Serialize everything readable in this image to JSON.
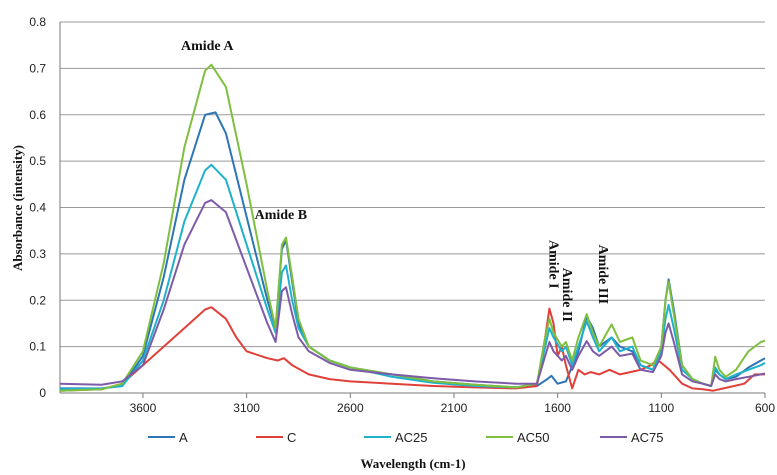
{
  "chart_data": {
    "type": "line",
    "title": "",
    "xlabel": "Wavelength (cm-1)",
    "ylabel": "Absorbance (intensity)",
    "xlim": [
      4000,
      600
    ],
    "x_reversed": true,
    "ylim": [
      0,
      0.8
    ],
    "grid": true,
    "legend_position": "bottom",
    "x_ticks": [
      3600,
      3100,
      2600,
      2100,
      1600,
      1100,
      600
    ],
    "y_ticks": [
      "0",
      "0.1",
      "0.2",
      "0.3",
      "0.4",
      "0.5",
      "0.6",
      "0.7",
      "0.8"
    ],
    "annotations": [
      {
        "text": "Amide A",
        "x": 3290,
        "y": 0.74,
        "rotate": false
      },
      {
        "text": "Amide B",
        "x": 2935,
        "y": 0.375,
        "rotate": false
      },
      {
        "text": "Amide I",
        "x": 1640,
        "y": 0.33,
        "rotate": true
      },
      {
        "text": "Amide II",
        "x": 1575,
        "y": 0.27,
        "rotate": true
      },
      {
        "text": "Amide III",
        "x": 1400,
        "y": 0.32,
        "rotate": true
      }
    ],
    "series": [
      {
        "name": "A",
        "color": "#2E75B6",
        "points": [
          [
            4000,
            0.01
          ],
          [
            3800,
            0.01
          ],
          [
            3700,
            0.015
          ],
          [
            3600,
            0.08
          ],
          [
            3500,
            0.25
          ],
          [
            3400,
            0.46
          ],
          [
            3300,
            0.6
          ],
          [
            3250,
            0.605
          ],
          [
            3200,
            0.56
          ],
          [
            3100,
            0.38
          ],
          [
            3000,
            0.2
          ],
          [
            2960,
            0.14
          ],
          [
            2930,
            0.31
          ],
          [
            2910,
            0.33
          ],
          [
            2880,
            0.24
          ],
          [
            2850,
            0.15
          ],
          [
            2800,
            0.1
          ],
          [
            2700,
            0.07
          ],
          [
            2600,
            0.055
          ],
          [
            2400,
            0.04
          ],
          [
            2200,
            0.025
          ],
          [
            2000,
            0.018
          ],
          [
            1800,
            0.012
          ],
          [
            1700,
            0.015
          ],
          [
            1650,
            0.03
          ],
          [
            1630,
            0.037
          ],
          [
            1600,
            0.02
          ],
          [
            1560,
            0.025
          ],
          [
            1500,
            0.09
          ],
          [
            1460,
            0.165
          ],
          [
            1430,
            0.14
          ],
          [
            1400,
            0.1
          ],
          [
            1340,
            0.12
          ],
          [
            1300,
            0.1
          ],
          [
            1240,
            0.09
          ],
          [
            1200,
            0.06
          ],
          [
            1140,
            0.05
          ],
          [
            1100,
            0.1
          ],
          [
            1080,
            0.2
          ],
          [
            1065,
            0.245
          ],
          [
            1040,
            0.18
          ],
          [
            1000,
            0.06
          ],
          [
            950,
            0.03
          ],
          [
            900,
            0.02
          ],
          [
            860,
            0.015
          ],
          [
            840,
            0.05
          ],
          [
            820,
            0.04
          ],
          [
            790,
            0.03
          ],
          [
            740,
            0.035
          ],
          [
            680,
            0.055
          ],
          [
            620,
            0.07
          ],
          [
            600,
            0.075
          ]
        ]
      },
      {
        "name": "C",
        "color": "#E0403A",
        "points": [
          [
            4000,
            0.005
          ],
          [
            3800,
            0.008
          ],
          [
            3700,
            0.02
          ],
          [
            3600,
            0.06
          ],
          [
            3500,
            0.1
          ],
          [
            3400,
            0.14
          ],
          [
            3300,
            0.18
          ],
          [
            3270,
            0.185
          ],
          [
            3200,
            0.16
          ],
          [
            3150,
            0.12
          ],
          [
            3100,
            0.09
          ],
          [
            3000,
            0.075
          ],
          [
            2950,
            0.07
          ],
          [
            2920,
            0.075
          ],
          [
            2880,
            0.06
          ],
          [
            2800,
            0.04
          ],
          [
            2700,
            0.03
          ],
          [
            2600,
            0.025
          ],
          [
            2400,
            0.02
          ],
          [
            2200,
            0.015
          ],
          [
            2000,
            0.012
          ],
          [
            1800,
            0.01
          ],
          [
            1700,
            0.015
          ],
          [
            1660,
            0.12
          ],
          [
            1640,
            0.182
          ],
          [
            1620,
            0.15
          ],
          [
            1600,
            0.08
          ],
          [
            1580,
            0.1
          ],
          [
            1560,
            0.06
          ],
          [
            1530,
            0.01
          ],
          [
            1500,
            0.05
          ],
          [
            1470,
            0.04
          ],
          [
            1440,
            0.045
          ],
          [
            1400,
            0.04
          ],
          [
            1350,
            0.05
          ],
          [
            1300,
            0.04
          ],
          [
            1250,
            0.045
          ],
          [
            1200,
            0.05
          ],
          [
            1150,
            0.06
          ],
          [
            1120,
            0.072
          ],
          [
            1100,
            0.065
          ],
          [
            1060,
            0.05
          ],
          [
            1000,
            0.02
          ],
          [
            950,
            0.01
          ],
          [
            900,
            0.008
          ],
          [
            850,
            0.005
          ],
          [
            800,
            0.01
          ],
          [
            700,
            0.02
          ],
          [
            650,
            0.04
          ],
          [
            600,
            0.04
          ]
        ]
      },
      {
        "name": "AC25",
        "color": "#1FB1CC",
        "points": [
          [
            4000,
            0.008
          ],
          [
            3800,
            0.01
          ],
          [
            3700,
            0.015
          ],
          [
            3600,
            0.07
          ],
          [
            3500,
            0.2
          ],
          [
            3400,
            0.37
          ],
          [
            3300,
            0.48
          ],
          [
            3270,
            0.492
          ],
          [
            3200,
            0.46
          ],
          [
            3100,
            0.32
          ],
          [
            3000,
            0.18
          ],
          [
            2960,
            0.13
          ],
          [
            2930,
            0.26
          ],
          [
            2910,
            0.275
          ],
          [
            2880,
            0.2
          ],
          [
            2850,
            0.14
          ],
          [
            2800,
            0.1
          ],
          [
            2700,
            0.07
          ],
          [
            2600,
            0.055
          ],
          [
            2400,
            0.035
          ],
          [
            2200,
            0.022
          ],
          [
            2000,
            0.015
          ],
          [
            1800,
            0.012
          ],
          [
            1700,
            0.02
          ],
          [
            1660,
            0.1
          ],
          [
            1640,
            0.14
          ],
          [
            1620,
            0.12
          ],
          [
            1580,
            0.09
          ],
          [
            1560,
            0.1
          ],
          [
            1530,
            0.06
          ],
          [
            1500,
            0.1
          ],
          [
            1460,
            0.155
          ],
          [
            1430,
            0.12
          ],
          [
            1400,
            0.09
          ],
          [
            1340,
            0.12
          ],
          [
            1300,
            0.09
          ],
          [
            1240,
            0.1
          ],
          [
            1200,
            0.06
          ],
          [
            1140,
            0.05
          ],
          [
            1100,
            0.09
          ],
          [
            1080,
            0.16
          ],
          [
            1065,
            0.19
          ],
          [
            1040,
            0.14
          ],
          [
            1000,
            0.05
          ],
          [
            950,
            0.03
          ],
          [
            900,
            0.02
          ],
          [
            860,
            0.015
          ],
          [
            840,
            0.055
          ],
          [
            820,
            0.04
          ],
          [
            790,
            0.03
          ],
          [
            740,
            0.04
          ],
          [
            680,
            0.05
          ],
          [
            620,
            0.06
          ],
          [
            600,
            0.065
          ]
        ]
      },
      {
        "name": "AC50",
        "color": "#7FBF3F",
        "points": [
          [
            4000,
            0.005
          ],
          [
            3800,
            0.008
          ],
          [
            3700,
            0.02
          ],
          [
            3600,
            0.09
          ],
          [
            3500,
            0.28
          ],
          [
            3400,
            0.53
          ],
          [
            3300,
            0.695
          ],
          [
            3270,
            0.708
          ],
          [
            3200,
            0.66
          ],
          [
            3100,
            0.45
          ],
          [
            3000,
            0.22
          ],
          [
            2960,
            0.14
          ],
          [
            2930,
            0.32
          ],
          [
            2910,
            0.335
          ],
          [
            2880,
            0.25
          ],
          [
            2850,
            0.16
          ],
          [
            2800,
            0.1
          ],
          [
            2700,
            0.07
          ],
          [
            2600,
            0.055
          ],
          [
            2400,
            0.04
          ],
          [
            2200,
            0.025
          ],
          [
            2000,
            0.018
          ],
          [
            1800,
            0.012
          ],
          [
            1700,
            0.02
          ],
          [
            1660,
            0.12
          ],
          [
            1640,
            0.16
          ],
          [
            1620,
            0.13
          ],
          [
            1580,
            0.1
          ],
          [
            1560,
            0.11
          ],
          [
            1530,
            0.07
          ],
          [
            1500,
            0.12
          ],
          [
            1460,
            0.17
          ],
          [
            1430,
            0.13
          ],
          [
            1400,
            0.1
          ],
          [
            1340,
            0.148
          ],
          [
            1300,
            0.11
          ],
          [
            1240,
            0.12
          ],
          [
            1200,
            0.07
          ],
          [
            1140,
            0.06
          ],
          [
            1100,
            0.1
          ],
          [
            1080,
            0.2
          ],
          [
            1065,
            0.24
          ],
          [
            1040,
            0.17
          ],
          [
            1000,
            0.06
          ],
          [
            950,
            0.03
          ],
          [
            900,
            0.02
          ],
          [
            860,
            0.015
          ],
          [
            840,
            0.078
          ],
          [
            820,
            0.05
          ],
          [
            790,
            0.035
          ],
          [
            740,
            0.05
          ],
          [
            680,
            0.09
          ],
          [
            620,
            0.11
          ],
          [
            600,
            0.113
          ]
        ]
      },
      {
        "name": "AC75",
        "color": "#7E5BA8",
        "points": [
          [
            4000,
            0.02
          ],
          [
            3800,
            0.018
          ],
          [
            3700,
            0.025
          ],
          [
            3600,
            0.06
          ],
          [
            3500,
            0.18
          ],
          [
            3400,
            0.32
          ],
          [
            3300,
            0.41
          ],
          [
            3270,
            0.416
          ],
          [
            3200,
            0.39
          ],
          [
            3100,
            0.27
          ],
          [
            3000,
            0.15
          ],
          [
            2960,
            0.11
          ],
          [
            2930,
            0.22
          ],
          [
            2910,
            0.228
          ],
          [
            2880,
            0.17
          ],
          [
            2850,
            0.12
          ],
          [
            2800,
            0.09
          ],
          [
            2700,
            0.065
          ],
          [
            2600,
            0.05
          ],
          [
            2400,
            0.04
          ],
          [
            2200,
            0.032
          ],
          [
            2000,
            0.025
          ],
          [
            1800,
            0.02
          ],
          [
            1700,
            0.02
          ],
          [
            1660,
            0.08
          ],
          [
            1640,
            0.11
          ],
          [
            1620,
            0.09
          ],
          [
            1580,
            0.07
          ],
          [
            1560,
            0.08
          ],
          [
            1530,
            0.05
          ],
          [
            1500,
            0.08
          ],
          [
            1460,
            0.112
          ],
          [
            1430,
            0.09
          ],
          [
            1400,
            0.08
          ],
          [
            1340,
            0.1
          ],
          [
            1300,
            0.08
          ],
          [
            1240,
            0.085
          ],
          [
            1200,
            0.05
          ],
          [
            1140,
            0.045
          ],
          [
            1100,
            0.08
          ],
          [
            1080,
            0.13
          ],
          [
            1065,
            0.15
          ],
          [
            1040,
            0.11
          ],
          [
            1000,
            0.04
          ],
          [
            950,
            0.025
          ],
          [
            900,
            0.02
          ],
          [
            860,
            0.015
          ],
          [
            840,
            0.04
          ],
          [
            820,
            0.03
          ],
          [
            790,
            0.025
          ],
          [
            740,
            0.03
          ],
          [
            680,
            0.035
          ],
          [
            620,
            0.04
          ],
          [
            600,
            0.042
          ]
        ]
      }
    ]
  }
}
